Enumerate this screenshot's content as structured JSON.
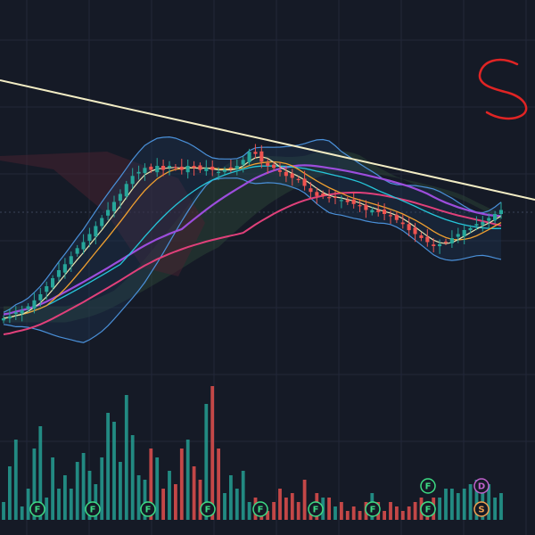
{
  "chart_data": {
    "type": "candlestick",
    "title": "",
    "xlabel": "",
    "ylabel": "",
    "grid": true,
    "legend": "none",
    "ylim": [
      0,
      100
    ],
    "price_closes": [
      8,
      9,
      11,
      12,
      14,
      17,
      20,
      24,
      28,
      32,
      35,
      39,
      43,
      46,
      50,
      54,
      58,
      62,
      66,
      70,
      75,
      79,
      81,
      83,
      82,
      84,
      82,
      84,
      83,
      82,
      84,
      83,
      82,
      83,
      82,
      81,
      82,
      83,
      84,
      87,
      91,
      90,
      86,
      84,
      83,
      81,
      79,
      78,
      77,
      74,
      71,
      69,
      69,
      68,
      68,
      67,
      66,
      65,
      64,
      62,
      62,
      61,
      60,
      59,
      57,
      55,
      52,
      50,
      48,
      46,
      44,
      45,
      46,
      48,
      50,
      52,
      53,
      55,
      56,
      58,
      60,
      62
    ],
    "volume": [
      20,
      60,
      90,
      15,
      35,
      80,
      105,
      25,
      70,
      35,
      50,
      35,
      65,
      75,
      55,
      40,
      70,
      120,
      110,
      65,
      140,
      95,
      50,
      45,
      80,
      70,
      35,
      55,
      40,
      80,
      90,
      60,
      45,
      130,
      150,
      80,
      30,
      50,
      35,
      55,
      20,
      25,
      15,
      10,
      20,
      35,
      25,
      30,
      20,
      45,
      15,
      30,
      25,
      25,
      15,
      20,
      10,
      15,
      10,
      20,
      30,
      20,
      10,
      20,
      15,
      10,
      15,
      20,
      25,
      20,
      25,
      25,
      35,
      35,
      30,
      35,
      40,
      45,
      35,
      40,
      25,
      30
    ],
    "markers": [
      {
        "label": "F",
        "color": "#3ddc84"
      },
      {
        "label": "F",
        "color": "#3ddc84"
      },
      {
        "label": "F",
        "color": "#3ddc84"
      },
      {
        "label": "F",
        "color": "#3ddc84"
      },
      {
        "label": "F",
        "color": "#3ddc84"
      },
      {
        "label": "F",
        "color": "#3ddc84"
      },
      {
        "label": "F",
        "color": "#3ddc84"
      },
      {
        "label": "F",
        "color": "#3ddc84"
      },
      {
        "label": "F",
        "color": "#3ddc84"
      },
      {
        "label": "F",
        "color": "#3ddc84"
      },
      {
        "label": "D",
        "color": "#c061cb"
      },
      {
        "label": "S",
        "color": "#f0a050"
      }
    ],
    "colors": {
      "background": "#151a26",
      "up": "#26a69a",
      "down": "#ef5350",
      "trendline": "#f2ecc4",
      "bollinger": "#4a90d9",
      "ma_fast": "#e8e6b0",
      "ma_mid": "#f0a030",
      "ma_slow": "#26c6da",
      "ma_long": "#e0407a",
      "ma_purple": "#9c4ddc",
      "annotation": "#e02424"
    }
  }
}
